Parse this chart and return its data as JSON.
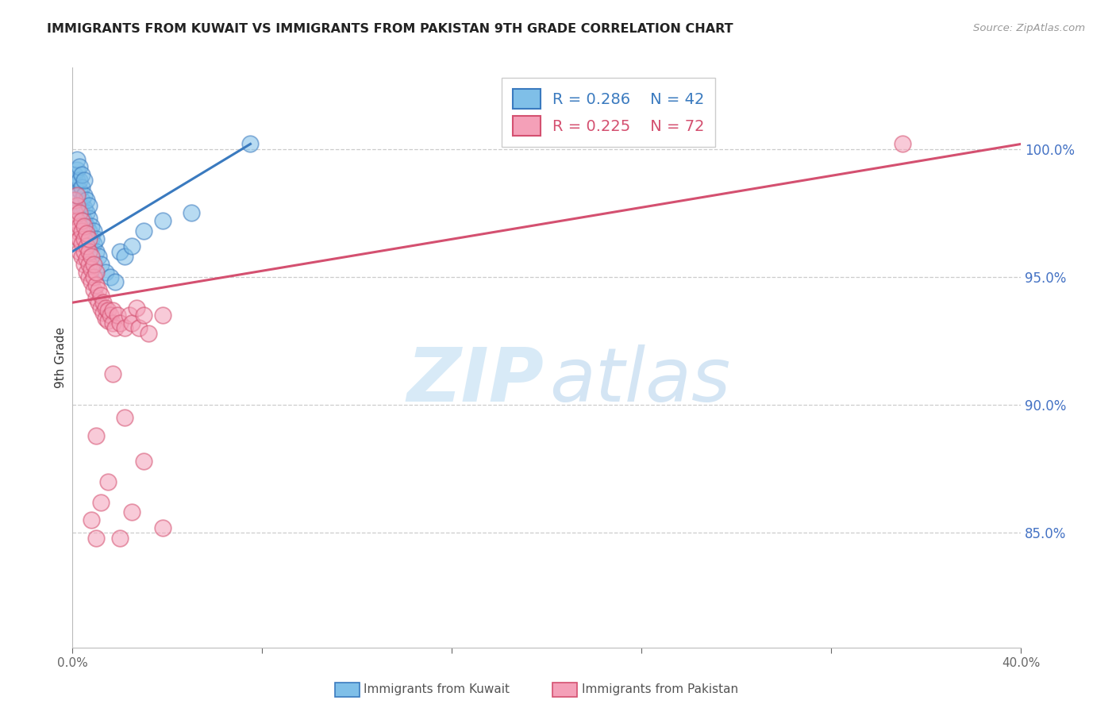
{
  "title": "IMMIGRANTS FROM KUWAIT VS IMMIGRANTS FROM PAKISTAN 9TH GRADE CORRELATION CHART",
  "source": "Source: ZipAtlas.com",
  "ylabel": "9th Grade",
  "ytick_labels": [
    "100.0%",
    "95.0%",
    "90.0%",
    "85.0%"
  ],
  "ytick_values": [
    1.0,
    0.95,
    0.9,
    0.85
  ],
  "xmin": 0.0,
  "xmax": 0.4,
  "ymin": 0.805,
  "ymax": 1.032,
  "legend_r_kuwait": "R = 0.286",
  "legend_n_kuwait": "N = 42",
  "legend_r_pakistan": "R = 0.225",
  "legend_n_pakistan": "N = 72",
  "kuwait_fill": "#7fbfe8",
  "kuwait_edge": "#3a7abf",
  "pakistan_fill": "#f4a0b8",
  "pakistan_edge": "#d45070",
  "trendline_kuwait": "#3a7abf",
  "trendline_pakistan": "#d45070",
  "legend_text_kuwait": "#3a7abf",
  "legend_text_pakistan": "#d45070",
  "trendline_kuwait_x0": 0.0,
  "trendline_kuwait_y0": 0.96,
  "trendline_kuwait_x1": 0.075,
  "trendline_kuwait_y1": 1.002,
  "trendline_pakistan_x0": 0.0,
  "trendline_pakistan_y0": 0.94,
  "trendline_pakistan_x1": 0.4,
  "trendline_pakistan_y1": 1.002,
  "kuwait_x": [
    0.001,
    0.001,
    0.002,
    0.002,
    0.002,
    0.002,
    0.003,
    0.003,
    0.003,
    0.003,
    0.004,
    0.004,
    0.004,
    0.004,
    0.005,
    0.005,
    0.005,
    0.005,
    0.006,
    0.006,
    0.006,
    0.007,
    0.007,
    0.007,
    0.008,
    0.008,
    0.009,
    0.009,
    0.01,
    0.01,
    0.011,
    0.012,
    0.014,
    0.016,
    0.018,
    0.02,
    0.022,
    0.025,
    0.03,
    0.038,
    0.05,
    0.075
  ],
  "kuwait_y": [
    0.985,
    0.99,
    0.982,
    0.988,
    0.992,
    0.996,
    0.978,
    0.984,
    0.988,
    0.993,
    0.975,
    0.98,
    0.985,
    0.99,
    0.972,
    0.977,
    0.982,
    0.988,
    0.97,
    0.975,
    0.98,
    0.968,
    0.973,
    0.978,
    0.965,
    0.97,
    0.963,
    0.968,
    0.96,
    0.965,
    0.958,
    0.955,
    0.952,
    0.95,
    0.948,
    0.96,
    0.958,
    0.962,
    0.968,
    0.972,
    0.975,
    1.002
  ],
  "pakistan_x": [
    0.001,
    0.001,
    0.002,
    0.002,
    0.002,
    0.002,
    0.003,
    0.003,
    0.003,
    0.003,
    0.003,
    0.004,
    0.004,
    0.004,
    0.004,
    0.005,
    0.005,
    0.005,
    0.005,
    0.006,
    0.006,
    0.006,
    0.006,
    0.007,
    0.007,
    0.007,
    0.007,
    0.008,
    0.008,
    0.008,
    0.009,
    0.009,
    0.009,
    0.01,
    0.01,
    0.01,
    0.011,
    0.011,
    0.012,
    0.012,
    0.013,
    0.013,
    0.014,
    0.014,
    0.015,
    0.015,
    0.016,
    0.017,
    0.017,
    0.018,
    0.019,
    0.02,
    0.022,
    0.024,
    0.025,
    0.027,
    0.028,
    0.03,
    0.032,
    0.038,
    0.017,
    0.022,
    0.03,
    0.038,
    0.01,
    0.015,
    0.012,
    0.02,
    0.025,
    0.008,
    0.01,
    0.35
  ],
  "pakistan_y": [
    0.975,
    0.98,
    0.972,
    0.978,
    0.982,
    0.968,
    0.965,
    0.97,
    0.975,
    0.96,
    0.965,
    0.958,
    0.963,
    0.968,
    0.972,
    0.955,
    0.96,
    0.965,
    0.97,
    0.952,
    0.957,
    0.962,
    0.967,
    0.95,
    0.955,
    0.96,
    0.965,
    0.948,
    0.953,
    0.958,
    0.945,
    0.95,
    0.955,
    0.942,
    0.947,
    0.952,
    0.94,
    0.945,
    0.938,
    0.943,
    0.936,
    0.94,
    0.934,
    0.938,
    0.933,
    0.937,
    0.935,
    0.932,
    0.937,
    0.93,
    0.935,
    0.932,
    0.93,
    0.935,
    0.932,
    0.938,
    0.93,
    0.935,
    0.928,
    0.935,
    0.912,
    0.895,
    0.878,
    0.852,
    0.888,
    0.87,
    0.862,
    0.848,
    0.858,
    0.855,
    0.848,
    1.002
  ]
}
